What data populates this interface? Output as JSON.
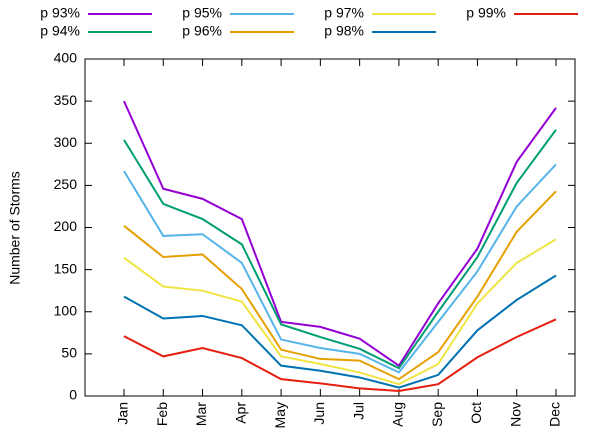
{
  "chart_data": {
    "type": "line",
    "y_label": "Number of Storms",
    "categories": [
      "Jan",
      "Feb",
      "Mar",
      "Apr",
      "May",
      "Jun",
      "Jul",
      "Aug",
      "Sep",
      "Oct",
      "Nov",
      "Dec"
    ],
    "series": [
      {
        "name": "p 93%",
        "color": "#9400d3",
        "values": [
          350,
          246,
          234,
          210,
          88,
          82,
          68,
          36,
          110,
          175,
          278,
          342
        ]
      },
      {
        "name": "p 94%",
        "color": "#009e73",
        "values": [
          304,
          228,
          210,
          180,
          85,
          70,
          56,
          33,
          100,
          165,
          253,
          316
        ]
      },
      {
        "name": "p 95%",
        "color": "#56b4e9",
        "values": [
          267,
          190,
          192,
          158,
          67,
          57,
          50,
          28,
          88,
          148,
          225,
          275
        ]
      },
      {
        "name": "p 96%",
        "color": "#e69f00",
        "values": [
          202,
          165,
          168,
          127,
          55,
          44,
          42,
          20,
          52,
          118,
          195,
          243
        ]
      },
      {
        "name": "p 97%",
        "color": "#f0e442",
        "values": [
          164,
          130,
          125,
          112,
          47,
          38,
          28,
          14,
          38,
          110,
          158,
          186
        ]
      },
      {
        "name": "p 98%",
        "color": "#0072b2",
        "values": [
          118,
          92,
          95,
          84,
          36,
          30,
          22,
          10,
          25,
          78,
          114,
          143
        ]
      },
      {
        "name": "p 99%",
        "color": "#e51e10",
        "values": [
          71,
          47,
          57,
          45,
          20,
          15,
          9,
          6,
          14,
          46,
          70,
          91
        ]
      }
    ],
    "ylim": [
      0,
      400
    ],
    "yticks": [
      0,
      50,
      100,
      150,
      200,
      250,
      300,
      350,
      400
    ],
    "legend": "top",
    "grid": false
  }
}
